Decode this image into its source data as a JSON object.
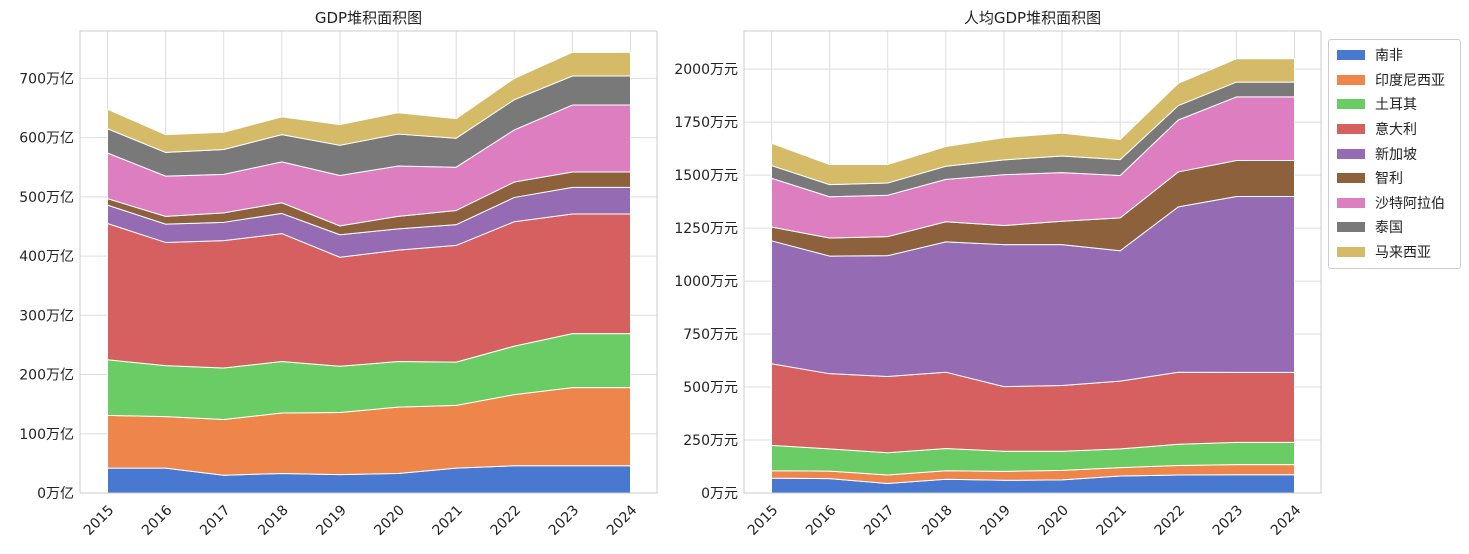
{
  "colors": {
    "南非": "#4878d0",
    "印度尼西亚": "#ee854a",
    "土耳其": "#6acc64",
    "意大利": "#d65f5f",
    "新加坡": "#956cb4",
    "智利": "#8c613c",
    "沙特阿拉伯": "#dc7ec0",
    "泰国": "#797979",
    "马来西亚": "#d5bb67"
  },
  "legend": {
    "items": [
      "南非",
      "印度尼西亚",
      "土耳其",
      "意大利",
      "新加坡",
      "智利",
      "沙特阿拉伯",
      "泰国",
      "马来西亚"
    ]
  },
  "chart_data": [
    {
      "type": "area",
      "stacked": true,
      "title": "GDP堆积面积图",
      "xlabel": "",
      "ylabel": "",
      "x": [
        "2015",
        "2016",
        "2017",
        "2018",
        "2019",
        "2020",
        "2021",
        "2022",
        "2023",
        "2024"
      ],
      "ylim": [
        0,
        780
      ],
      "yticks": [
        0,
        100,
        200,
        300,
        400,
        500,
        600,
        700
      ],
      "ytick_labels": [
        "0万亿",
        "100万亿",
        "200万亿",
        "300万亿",
        "400万亿",
        "500万亿",
        "600万亿",
        "700万亿"
      ],
      "grid": true,
      "series": [
        {
          "name": "南非",
          "values": [
            42,
            42,
            30,
            33,
            31,
            33,
            42,
            46,
            46,
            46
          ]
        },
        {
          "name": "印度尼西亚",
          "values": [
            89,
            87,
            94,
            102,
            105,
            112,
            106,
            120,
            132,
            132
          ]
        },
        {
          "name": "土耳其",
          "values": [
            94,
            86,
            87,
            87,
            78,
            77,
            73,
            82,
            91,
            91
          ]
        },
        {
          "name": "意大利",
          "values": [
            230,
            208,
            215,
            216,
            184,
            188,
            197,
            210,
            202,
            202
          ]
        },
        {
          "name": "新加坡",
          "values": [
            31,
            31,
            31,
            34,
            38,
            36,
            35,
            41,
            45,
            45
          ]
        },
        {
          "name": "智利",
          "values": [
            11,
            13,
            16,
            18,
            15,
            21,
            24,
            26,
            26,
            26
          ]
        },
        {
          "name": "沙特阿拉伯",
          "values": [
            77,
            68,
            65,
            69,
            85,
            85,
            73,
            88,
            113,
            113
          ]
        },
        {
          "name": "泰国",
          "values": [
            41,
            40,
            42,
            46,
            51,
            54,
            49,
            51,
            49,
            49
          ]
        },
        {
          "name": "马来西亚",
          "values": [
            33,
            30,
            29,
            30,
            35,
            36,
            33,
            36,
            40,
            40
          ]
        }
      ]
    },
    {
      "type": "area",
      "stacked": true,
      "title": "人均GDP堆积面积图",
      "xlabel": "",
      "ylabel": "",
      "x": [
        "2015",
        "2016",
        "2017",
        "2018",
        "2019",
        "2020",
        "2021",
        "2022",
        "2023",
        "2024"
      ],
      "ylim": [
        0,
        2180
      ],
      "yticks": [
        0,
        250,
        500,
        750,
        1000,
        1250,
        1500,
        1750,
        2000
      ],
      "ytick_labels": [
        "0万元",
        "250万元",
        "500万元",
        "750万元",
        "1000万元",
        "1250万元",
        "1500万元",
        "1750万元",
        "2000万元"
      ],
      "grid": true,
      "legend": "outside-right",
      "series": [
        {
          "name": "南非",
          "values": [
            70,
            68,
            45,
            65,
            60,
            62,
            80,
            85,
            86,
            86
          ]
        },
        {
          "name": "印度尼西亚",
          "values": [
            35,
            35,
            40,
            40,
            42,
            45,
            40,
            45,
            48,
            48
          ]
        },
        {
          "name": "土耳其",
          "values": [
            120,
            105,
            105,
            105,
            95,
            90,
            88,
            100,
            105,
            105
          ]
        },
        {
          "name": "意大利",
          "values": [
            385,
            355,
            360,
            360,
            305,
            310,
            320,
            340,
            330,
            330
          ]
        },
        {
          "name": "新加坡",
          "values": [
            580,
            555,
            570,
            615,
            670,
            665,
            615,
            780,
            830,
            830
          ]
        },
        {
          "name": "智利",
          "values": [
            65,
            85,
            90,
            95,
            90,
            110,
            155,
            165,
            170,
            170
          ]
        },
        {
          "name": "沙特阿拉伯",
          "values": [
            230,
            195,
            195,
            200,
            240,
            230,
            200,
            245,
            300,
            300
          ]
        },
        {
          "name": "泰国",
          "values": [
            60,
            57,
            58,
            62,
            70,
            78,
            75,
            68,
            70,
            70
          ]
        },
        {
          "name": "马来西亚",
          "values": [
            105,
            95,
            87,
            93,
            105,
            108,
            95,
            105,
            110,
            110
          ]
        }
      ]
    }
  ]
}
